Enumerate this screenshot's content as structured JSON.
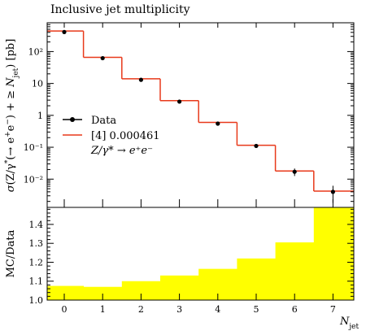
{
  "chart_data": [
    {
      "type": "line",
      "title": "Inclusive jet multiplicity",
      "ylabel": "σ(Z/γ* (→ e⁺e⁻) + ≥ N_jet) [pb]",
      "yscale": "log",
      "ylim": [
        0.0013,
        800
      ],
      "x": [
        0,
        1,
        2,
        3,
        4,
        5,
        6,
        7
      ],
      "y_tick_labels": [
        "10⁻²",
        "10⁻¹",
        "1",
        "10",
        "10²"
      ],
      "y_tick_values": [
        0.01,
        0.1,
        1,
        10,
        100
      ],
      "legend_position": "left",
      "series": [
        {
          "name": "Data",
          "style": "points-with-errors",
          "color": "#000000",
          "values": [
            410,
            62,
            13,
            2.7,
            0.55,
            0.11,
            0.017,
            0.004
          ],
          "err_lo": [
            8,
            2,
            0.6,
            0.18,
            0.05,
            0.015,
            0.0045,
            0.0022
          ],
          "err_hi": [
            8,
            2,
            0.6,
            0.18,
            0.05,
            0.015,
            0.0045,
            0.0022
          ]
        },
        {
          "name": "[4] 0.000461",
          "style": "step",
          "color": "#e8391a",
          "values": [
            440,
            66,
            14,
            2.9,
            0.6,
            0.115,
            0.018,
            0.0042
          ]
        }
      ],
      "legend_extra": "Z/γ* → e⁺e⁻"
    },
    {
      "type": "bar",
      "ylabel": "MC/Data",
      "xlabel": "N_jet",
      "ylim": [
        1.0,
        1.49
      ],
      "x": [
        0,
        1,
        2,
        3,
        4,
        5,
        6,
        7
      ],
      "x_tick_labels": [
        "0",
        "1",
        "2",
        "3",
        "4",
        "5",
        "6",
        "7"
      ],
      "y_tick_labels": [
        "1.0",
        "1.1",
        "1.2",
        "1.3",
        "1.4"
      ],
      "y_tick_values": [
        1.0,
        1.1,
        1.2,
        1.3,
        1.4
      ],
      "series": [
        {
          "name": "",
          "color": "#ffff00",
          "values": [
            1.075,
            1.07,
            1.1,
            1.13,
            1.165,
            1.22,
            1.305,
            1.49
          ]
        }
      ]
    }
  ],
  "title": "Inclusive jet multiplicity",
  "legend": {
    "data_label": "Data",
    "mc_label": "[4] 0.000461",
    "process_label": "Z/γ* → e⁺e⁻"
  },
  "colors": {
    "mc_line": "#e8391a",
    "ratio_fill": "#ffff00",
    "frame": "#000000"
  }
}
